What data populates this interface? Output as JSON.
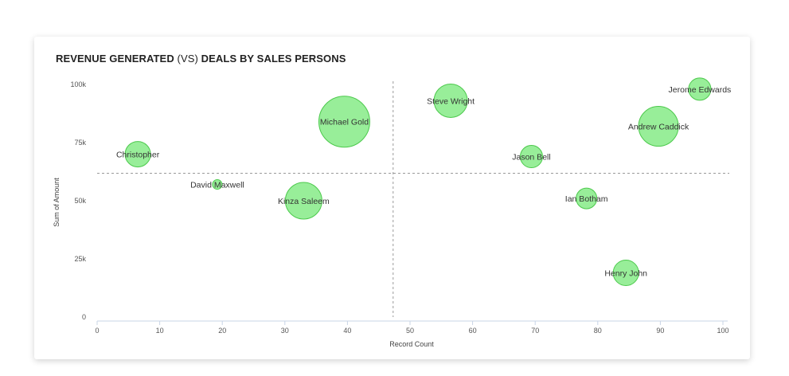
{
  "chart_data": {
    "type": "bubble",
    "title_part1": "REVENUE GENERATED",
    "title_part2": "(VS)",
    "title_part3": "DEALS BY SALES PERSONS",
    "xlabel": "Record Count",
    "ylabel": "Sum of Amount",
    "xlim": [
      0,
      100
    ],
    "ylim": [
      0,
      100000
    ],
    "x_ticks": [
      0,
      10,
      20,
      30,
      40,
      50,
      60,
      70,
      80,
      90,
      100
    ],
    "y_ticks": [
      {
        "value": 0,
        "label": "0"
      },
      {
        "value": 25000,
        "label": "25k"
      },
      {
        "value": 50000,
        "label": "50k"
      },
      {
        "value": 75000,
        "label": "75k"
      },
      {
        "value": 100000,
        "label": "100k"
      }
    ],
    "x_mean": 47.3,
    "y_mean": 61800,
    "bubble_color": "#98ee99",
    "bubble_stroke": "#4cc94c",
    "points": [
      {
        "name": "Christopher",
        "x": 6.5,
        "y": 70000,
        "size": 16
      },
      {
        "name": "David Maxwell",
        "x": 19.2,
        "y": 57000,
        "size": 6
      },
      {
        "name": "Kinza Saleem",
        "x": 33,
        "y": 50000,
        "size": 23
      },
      {
        "name": "Michael Gold",
        "x": 39.5,
        "y": 84000,
        "size": 32
      },
      {
        "name": "Steve Wright",
        "x": 56.5,
        "y": 93000,
        "size": 21
      },
      {
        "name": "Jason Bell",
        "x": 69.4,
        "y": 69000,
        "size": 14
      },
      {
        "name": "Ian Botham",
        "x": 78.2,
        "y": 51000,
        "size": 13
      },
      {
        "name": "Henry John",
        "x": 84.5,
        "y": 19000,
        "size": 16
      },
      {
        "name": "Andrew Caddick",
        "x": 89.7,
        "y": 82000,
        "size": 25
      },
      {
        "name": "Jerome Edwards",
        "x": 96.3,
        "y": 98000,
        "size": 14
      }
    ]
  }
}
